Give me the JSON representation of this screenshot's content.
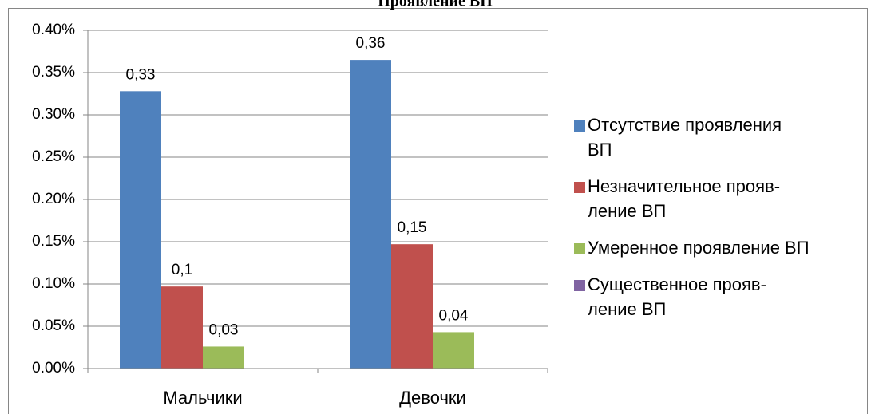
{
  "chart_data": {
    "type": "bar",
    "title": "Проявление ВП",
    "categories": [
      "Мальчики",
      "Девочки"
    ],
    "series": [
      {
        "name": "Отсутствие проявления\nВП",
        "color": "#4f81bd",
        "values": [
          0.328,
          0.365
        ],
        "value_labels": [
          "0,33",
          "0,36"
        ]
      },
      {
        "name": "Незначительное прояв-\nление ВП",
        "color": "#c0504d",
        "values": [
          0.097,
          0.147
        ],
        "value_labels": [
          "0,1",
          "0,15"
        ]
      },
      {
        "name": "Умеренное проявление ВП",
        "color": "#9bbb59",
        "values": [
          0.026,
          0.043
        ],
        "value_labels": [
          "0,03",
          "0,04"
        ]
      },
      {
        "name": "Существенное прояв-\nление ВП",
        "color": "#8064a2",
        "values": [
          0,
          0
        ]
      }
    ],
    "ylim": [
      0,
      0.4
    ],
    "yticks": [
      {
        "value": 0,
        "label": "0.00%"
      },
      {
        "value": 0.05,
        "label": "0.05%"
      },
      {
        "value": 0.1,
        "label": "0.10%"
      },
      {
        "value": 0.15,
        "label": "0.15%"
      },
      {
        "value": 0.2,
        "label": "0.20%"
      },
      {
        "value": 0.25,
        "label": "0.25%"
      },
      {
        "value": 0.3,
        "label": "0.30%"
      },
      {
        "value": 0.35,
        "label": "0.35%"
      },
      {
        "value": 0.4,
        "label": "0.40%"
      }
    ],
    "grid": true,
    "legend": "right"
  }
}
